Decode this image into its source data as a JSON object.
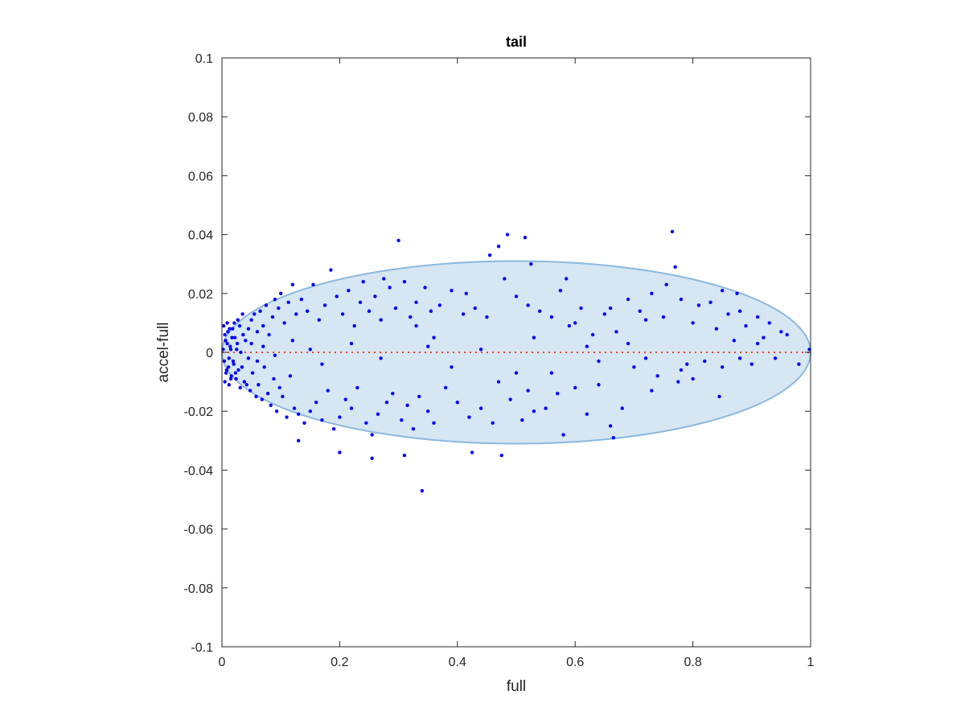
{
  "chart_data": {
    "type": "scatter",
    "title": "tail",
    "xlabel": "full",
    "ylabel": "accel-full",
    "xlim": [
      0,
      1
    ],
    "ylim": [
      -0.1,
      0.1
    ],
    "x_ticks": [
      "0",
      "0.2",
      "0.4",
      "0.6",
      "0.8",
      "1"
    ],
    "y_ticks": [
      "0.1",
      "0.08",
      "0.06",
      "0.04",
      "0.02",
      "0",
      "-0.02",
      "-0.04",
      "-0.06",
      "-0.08",
      "-0.1"
    ],
    "grid": false,
    "reference_line": {
      "y": 0,
      "color": "#ff3b30",
      "style": "dotted"
    },
    "ellipse": {
      "center": [
        0.5,
        0
      ],
      "semi_axis_x": 0.5,
      "semi_axis_y": 0.031,
      "fill": "#d6e6f3",
      "stroke": "#8ab8df"
    },
    "point_color": "#0000ff",
    "series": [
      {
        "values": [
          [
            0.002,
            0.001
          ],
          [
            0.004,
            -0.003
          ],
          [
            0.006,
            0.004
          ],
          [
            0.008,
            -0.006
          ],
          [
            0.01,
            0.007
          ],
          [
            0.012,
            -0.002
          ],
          [
            0.014,
            0.002
          ],
          [
            0.016,
            -0.008
          ],
          [
            0.018,
            0.008
          ],
          [
            0.02,
            -0.004
          ],
          [
            0.022,
            0.005
          ],
          [
            0.024,
            -0.009
          ],
          [
            0.026,
            0.003
          ],
          [
            0.028,
            -0.006
          ],
          [
            0.03,
            0.009
          ],
          [
            0.032,
            0
          ],
          [
            0.034,
            -0.005
          ],
          [
            0.036,
            0.006
          ],
          [
            0.038,
            -0.01
          ],
          [
            0.04,
            0.004
          ],
          [
            0.005,
            0.006
          ],
          [
            0.007,
            -0.007
          ],
          [
            0.009,
            0.003
          ],
          [
            0.011,
            -0.005
          ],
          [
            0.013,
            0.008
          ],
          [
            0.015,
            -0.009
          ],
          [
            0.017,
            0.005
          ],
          [
            0.019,
            -0.003
          ],
          [
            0.021,
            0.01
          ],
          [
            0.023,
            -0.007
          ],
          [
            0.003,
            0.009
          ],
          [
            0.005,
            -0.01
          ],
          [
            0.009,
            0.01
          ],
          [
            0.012,
            -0.011
          ],
          [
            0.027,
            0.011
          ],
          [
            0.031,
            -0.012
          ],
          [
            0.035,
            0.013
          ],
          [
            0.042,
            -0.011
          ],
          [
            0.045,
            0.008
          ],
          [
            0.048,
            -0.013
          ],
          [
            0.05,
            0.011
          ],
          [
            0.052,
            -0.007
          ],
          [
            0.055,
            0.013
          ],
          [
            0.058,
            -0.015
          ],
          [
            0.06,
            0.007
          ],
          [
            0.062,
            -0.011
          ],
          [
            0.065,
            0.014
          ],
          [
            0.068,
            -0.016
          ],
          [
            0.07,
            0.009
          ],
          [
            0.072,
            -0.005
          ],
          [
            0.075,
            0.016
          ],
          [
            0.078,
            -0.014
          ],
          [
            0.08,
            0.006
          ],
          [
            0.083,
            -0.018
          ],
          [
            0.086,
            0.012
          ],
          [
            0.088,
            -0.009
          ],
          [
            0.09,
            0.018
          ],
          [
            0.093,
            -0.02
          ],
          [
            0.096,
            0.015
          ],
          [
            0.098,
            -0.012
          ],
          [
            0.1,
            0.02
          ],
          [
            0.103,
            -0.015
          ],
          [
            0.106,
            0.01
          ],
          [
            0.11,
            -0.022
          ],
          [
            0.113,
            0.017
          ],
          [
            0.116,
            -0.008
          ],
          [
            0.12,
            0.023
          ],
          [
            0.123,
            -0.019
          ],
          [
            0.126,
            0.013
          ],
          [
            0.13,
            -0.021
          ],
          [
            0.135,
            0.018
          ],
          [
            0.14,
            -0.024
          ],
          [
            0.145,
            0.014
          ],
          [
            0.15,
            -0.02
          ],
          [
            0.155,
            0.023
          ],
          [
            0.16,
            -0.017
          ],
          [
            0.165,
            0.011
          ],
          [
            0.17,
            -0.023
          ],
          [
            0.175,
            0.016
          ],
          [
            0.18,
            -0.013
          ],
          [
            0.185,
            0.028
          ],
          [
            0.19,
            -0.026
          ],
          [
            0.195,
            0.019
          ],
          [
            0.2,
            -0.022
          ],
          [
            0.205,
            0.013
          ],
          [
            0.21,
            -0.016
          ],
          [
            0.215,
            0.021
          ],
          [
            0.22,
            -0.019
          ],
          [
            0.225,
            0.009
          ],
          [
            0.23,
            -0.012
          ],
          [
            0.235,
            0.017
          ],
          [
            0.24,
            0.024
          ],
          [
            0.245,
            -0.024
          ],
          [
            0.25,
            0.014
          ],
          [
            0.255,
            -0.028
          ],
          [
            0.26,
            0.019
          ],
          [
            0.265,
            -0.021
          ],
          [
            0.27,
            0.011
          ],
          [
            0.275,
            0.025
          ],
          [
            0.28,
            -0.017
          ],
          [
            0.285,
            0.022
          ],
          [
            0.29,
            -0.014
          ],
          [
            0.295,
            0.015
          ],
          [
            0.3,
            0.038
          ],
          [
            0.305,
            -0.023
          ],
          [
            0.31,
            0.024
          ],
          [
            0.315,
            -0.018
          ],
          [
            0.32,
            0.012
          ],
          [
            0.325,
            -0.026
          ],
          [
            0.33,
            0.017
          ],
          [
            0.335,
            -0.015
          ],
          [
            0.34,
            -0.047
          ],
          [
            0.345,
            0.022
          ],
          [
            0.35,
            -0.02
          ],
          [
            0.355,
            0.014
          ],
          [
            0.36,
            -0.024
          ],
          [
            0.37,
            0.016
          ],
          [
            0.38,
            -0.012
          ],
          [
            0.39,
            0.021
          ],
          [
            0.4,
            -0.017
          ],
          [
            0.41,
            0.013
          ],
          [
            0.42,
            -0.022
          ],
          [
            0.425,
            -0.034
          ],
          [
            0.43,
            0.015
          ],
          [
            0.44,
            -0.019
          ],
          [
            0.45,
            0.012
          ],
          [
            0.455,
            0.033
          ],
          [
            0.46,
            -0.024
          ],
          [
            0.47,
            0.036
          ],
          [
            0.475,
            -0.035
          ],
          [
            0.48,
            0.025
          ],
          [
            0.485,
            0.04
          ],
          [
            0.49,
            -0.016
          ],
          [
            0.5,
            0.019
          ],
          [
            0.51,
            -0.023
          ],
          [
            0.515,
            0.039
          ],
          [
            0.52,
            0.016
          ],
          [
            0.525,
            0.03
          ],
          [
            0.53,
            -0.02
          ],
          [
            0.54,
            0.014
          ],
          [
            0.55,
            -0.019
          ],
          [
            0.56,
            0.012
          ],
          [
            0.57,
            -0.014
          ],
          [
            0.575,
            0.021
          ],
          [
            0.58,
            -0.028
          ],
          [
            0.585,
            0.025
          ],
          [
            0.59,
            0.009
          ],
          [
            0.6,
            -0.012
          ],
          [
            0.61,
            0.015
          ],
          [
            0.62,
            -0.021
          ],
          [
            0.63,
            0.006
          ],
          [
            0.64,
            -0.011
          ],
          [
            0.65,
            0.013
          ],
          [
            0.66,
            -0.025
          ],
          [
            0.665,
            -0.029
          ],
          [
            0.67,
            0.007
          ],
          [
            0.68,
            -0.019
          ],
          [
            0.69,
            0.018
          ],
          [
            0.7,
            -0.005
          ],
          [
            0.71,
            0.014
          ],
          [
            0.72,
            -0.002
          ],
          [
            0.73,
            0.02
          ],
          [
            0.74,
            -0.008
          ],
          [
            0.75,
            0.012
          ],
          [
            0.755,
            0.023
          ],
          [
            0.765,
            0.041
          ],
          [
            0.77,
            0.029
          ],
          [
            0.775,
            -0.01
          ],
          [
            0.78,
            0.018
          ],
          [
            0.79,
            -0.004
          ],
          [
            0.8,
            0.01
          ],
          [
            0.81,
            0.016
          ],
          [
            0.82,
            -0.003
          ],
          [
            0.83,
            0.017
          ],
          [
            0.84,
            0.008
          ],
          [
            0.845,
            -0.015
          ],
          [
            0.85,
            0.021
          ],
          [
            0.86,
            0.013
          ],
          [
            0.87,
            0.004
          ],
          [
            0.875,
            0.02
          ],
          [
            0.88,
            0.014
          ],
          [
            0.89,
            0.009
          ],
          [
            0.9,
            -0.004
          ],
          [
            0.91,
            0.012
          ],
          [
            0.92,
            0.005
          ],
          [
            0.93,
            0.01
          ],
          [
            0.94,
            -0.002
          ],
          [
            0.95,
            0.007
          ],
          [
            0.96,
            0.006
          ],
          [
            0.98,
            -0.004
          ],
          [
            0.998,
            0.001
          ],
          [
            0.13,
            -0.03
          ],
          [
            0.2,
            -0.034
          ],
          [
            0.255,
            -0.036
          ],
          [
            0.31,
            -0.035
          ],
          [
            0.415,
            0.02
          ],
          [
            0.35,
            0.002
          ],
          [
            0.27,
            -0.002
          ],
          [
            0.22,
            0.003
          ],
          [
            0.39,
            -0.005
          ],
          [
            0.44,
            0.001
          ],
          [
            0.5,
            -0.007
          ],
          [
            0.53,
            0.005
          ],
          [
            0.6,
            0.01
          ],
          [
            0.64,
            -0.003
          ],
          [
            0.69,
            0.003
          ],
          [
            0.72,
            0.011
          ],
          [
            0.78,
            -0.006
          ],
          [
            0.88,
            -0.002
          ],
          [
            0.56,
            -0.007
          ],
          [
            0.15,
            0.001
          ],
          [
            0.17,
            -0.004
          ],
          [
            0.12,
            0.004
          ],
          [
            0.09,
            -0.001
          ],
          [
            0.07,
            0.002
          ],
          [
            0.06,
            -0.003
          ],
          [
            0.05,
            0.003
          ],
          [
            0.045,
            -0.002
          ],
          [
            0.025,
            0.001
          ],
          [
            0.015,
            0.001
          ],
          [
            0.33,
            0.009
          ],
          [
            0.36,
            0.005
          ],
          [
            0.47,
            -0.01
          ],
          [
            0.52,
            -0.013
          ],
          [
            0.62,
            0.002
          ],
          [
            0.73,
            -0.013
          ],
          [
            0.8,
            -0.009
          ],
          [
            0.85,
            -0.005
          ],
          [
            0.91,
            0.003
          ],
          [
            0.66,
            0.015
          ]
        ]
      }
    ]
  }
}
